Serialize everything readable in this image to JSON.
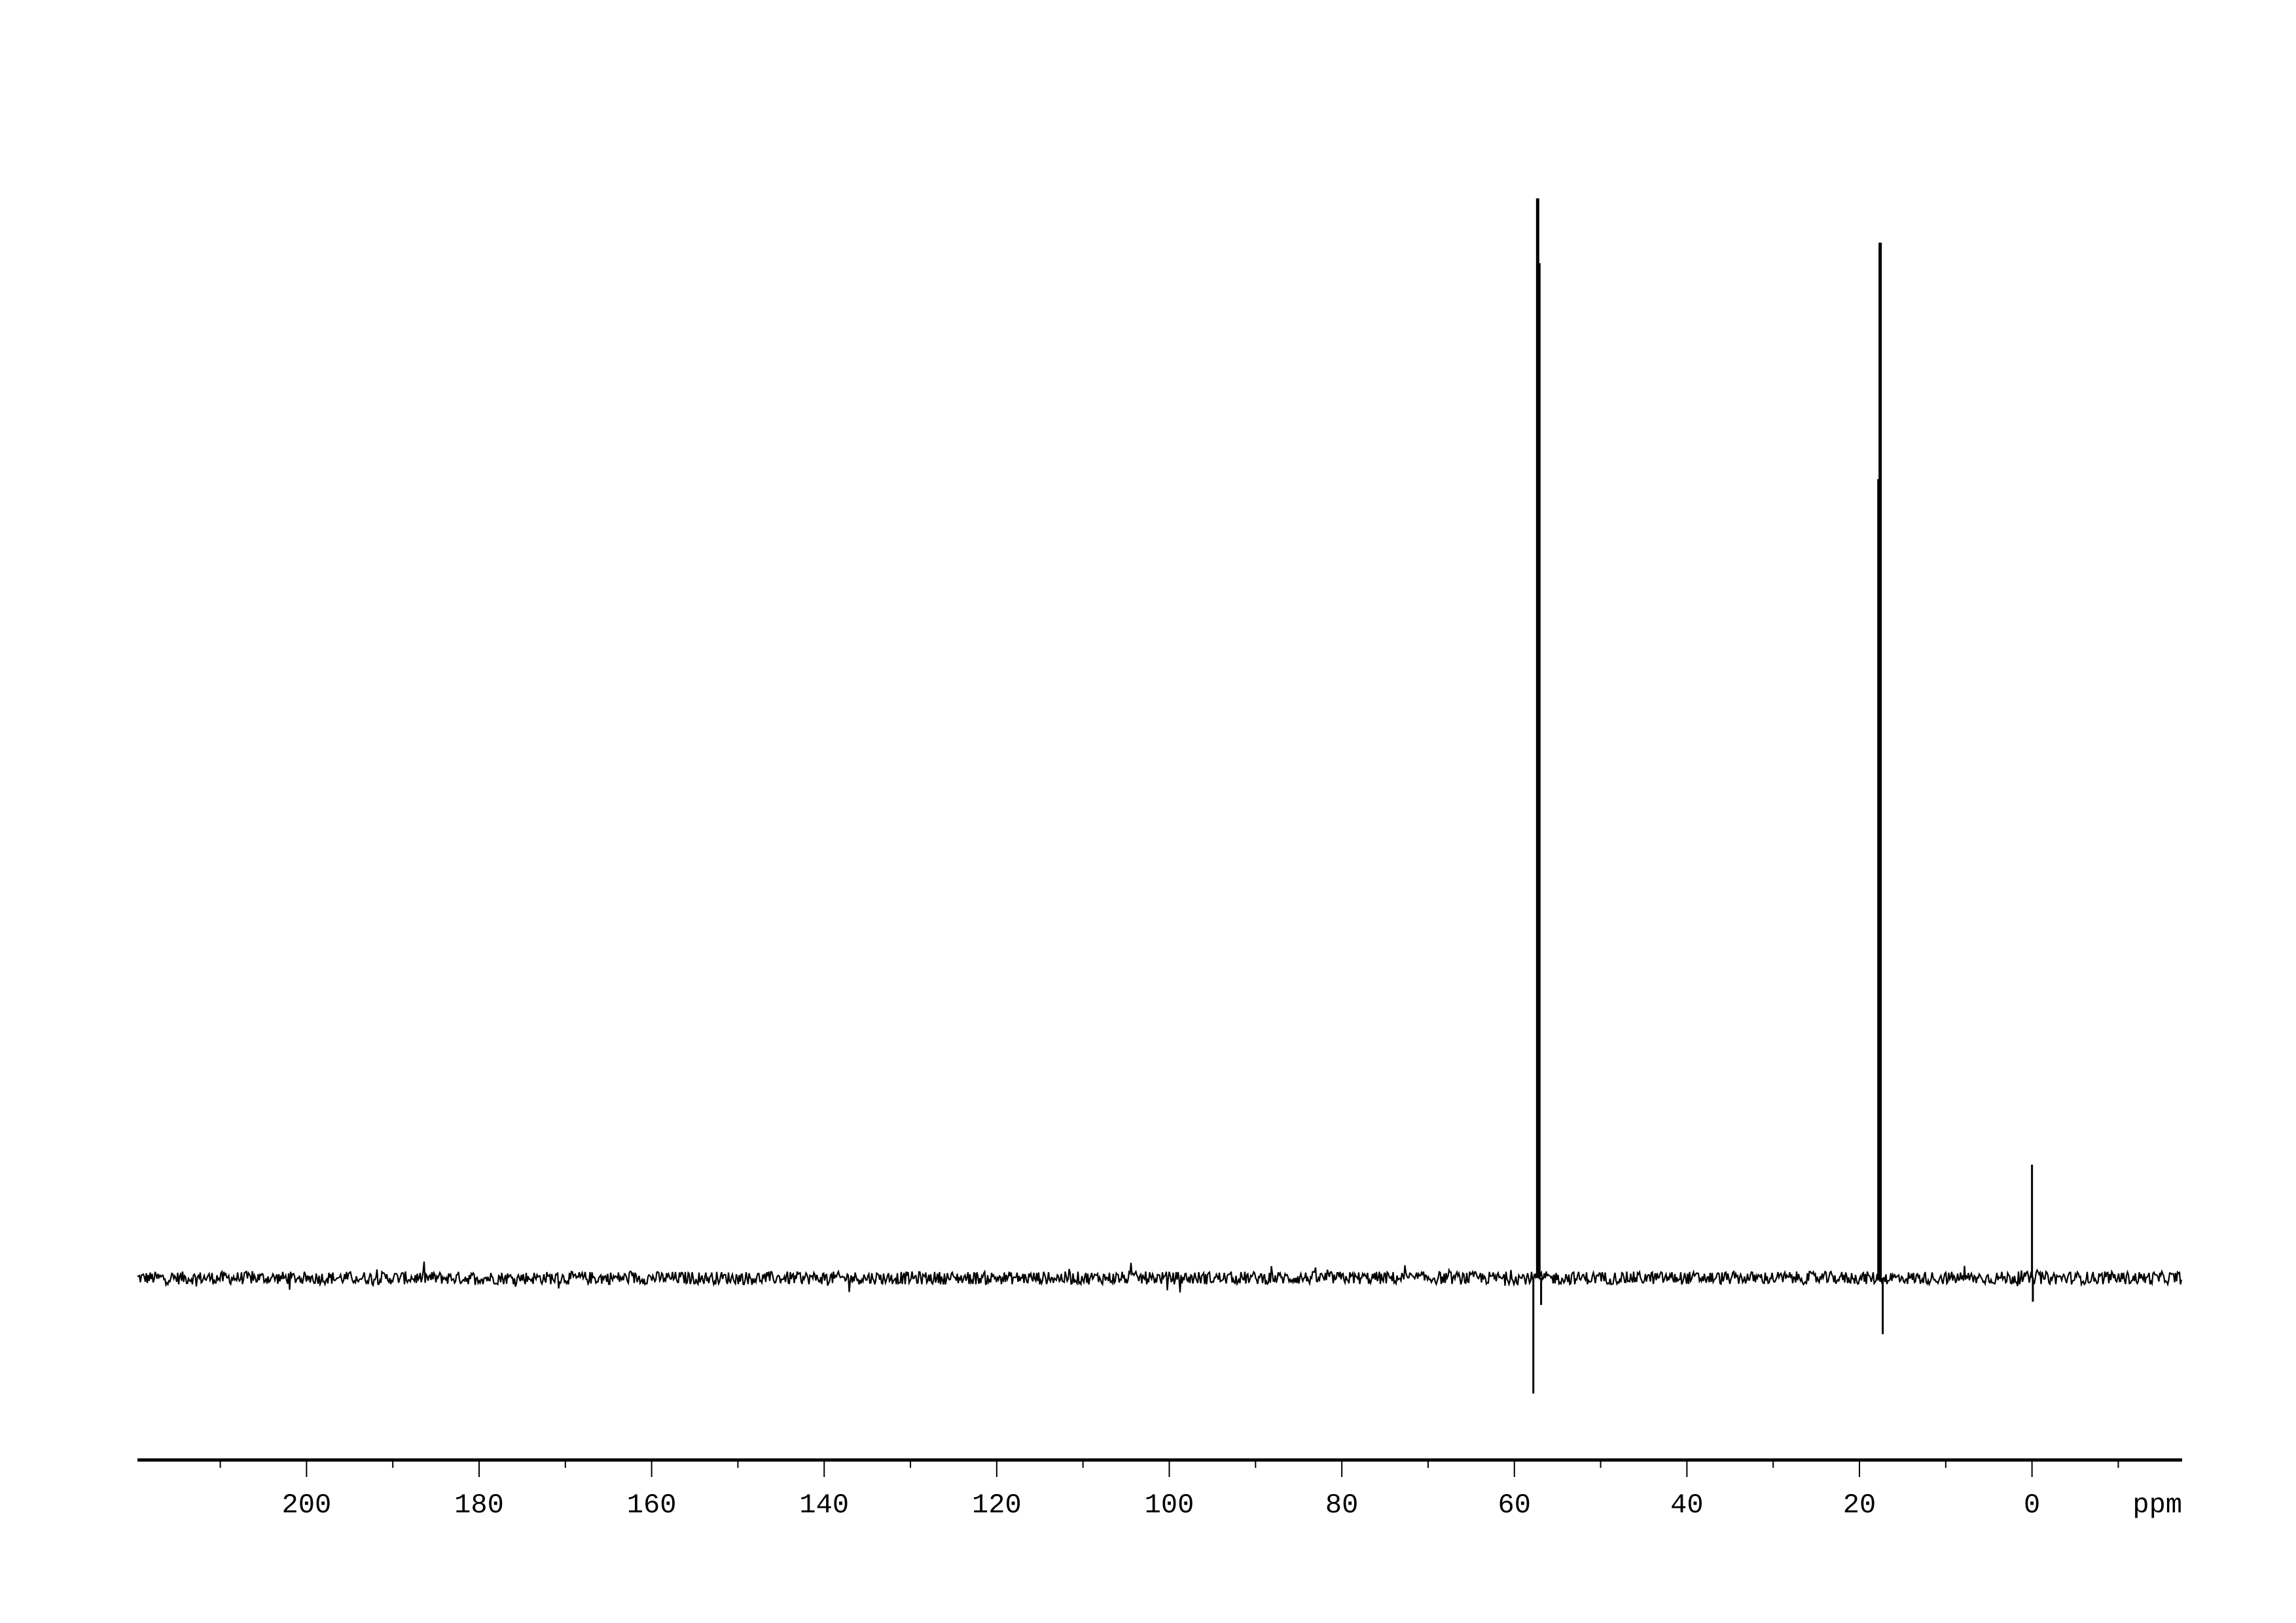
{
  "chart_data": {
    "type": "line",
    "title": "",
    "xlabel": "ppm",
    "ylabel": "",
    "x_reversed": true,
    "xlim": [
      219.6,
      -17.4
    ],
    "x_major_ticks": [
      200,
      180,
      160,
      140,
      120,
      100,
      80,
      60,
      40,
      20,
      0
    ],
    "x_tick_labels": [
      "200",
      "180",
      "160",
      "140",
      "120",
      "100",
      "80",
      "60",
      "40",
      "20",
      "0"
    ],
    "x_minor_step": 10,
    "grid": false,
    "y_axis_shown": false,
    "line_color": "#000000",
    "baseline_noise_amplitude": 1.0,
    "peaks": [
      {
        "ppm": 57.3,
        "intensity": 100
      },
      {
        "ppm": 57.15,
        "intensity": 94
      },
      {
        "ppm": 57.8,
        "intensity": -10.7
      },
      {
        "ppm": 56.9,
        "intensity": -2.5
      },
      {
        "ppm": 17.6,
        "intensity": 95.9
      },
      {
        "ppm": 17.75,
        "intensity": 74
      },
      {
        "ppm": 17.3,
        "intensity": -5.2
      },
      {
        "ppm": 0.0,
        "intensity": 10.5
      },
      {
        "ppm": -0.1,
        "intensity": -2.2
      }
    ]
  }
}
